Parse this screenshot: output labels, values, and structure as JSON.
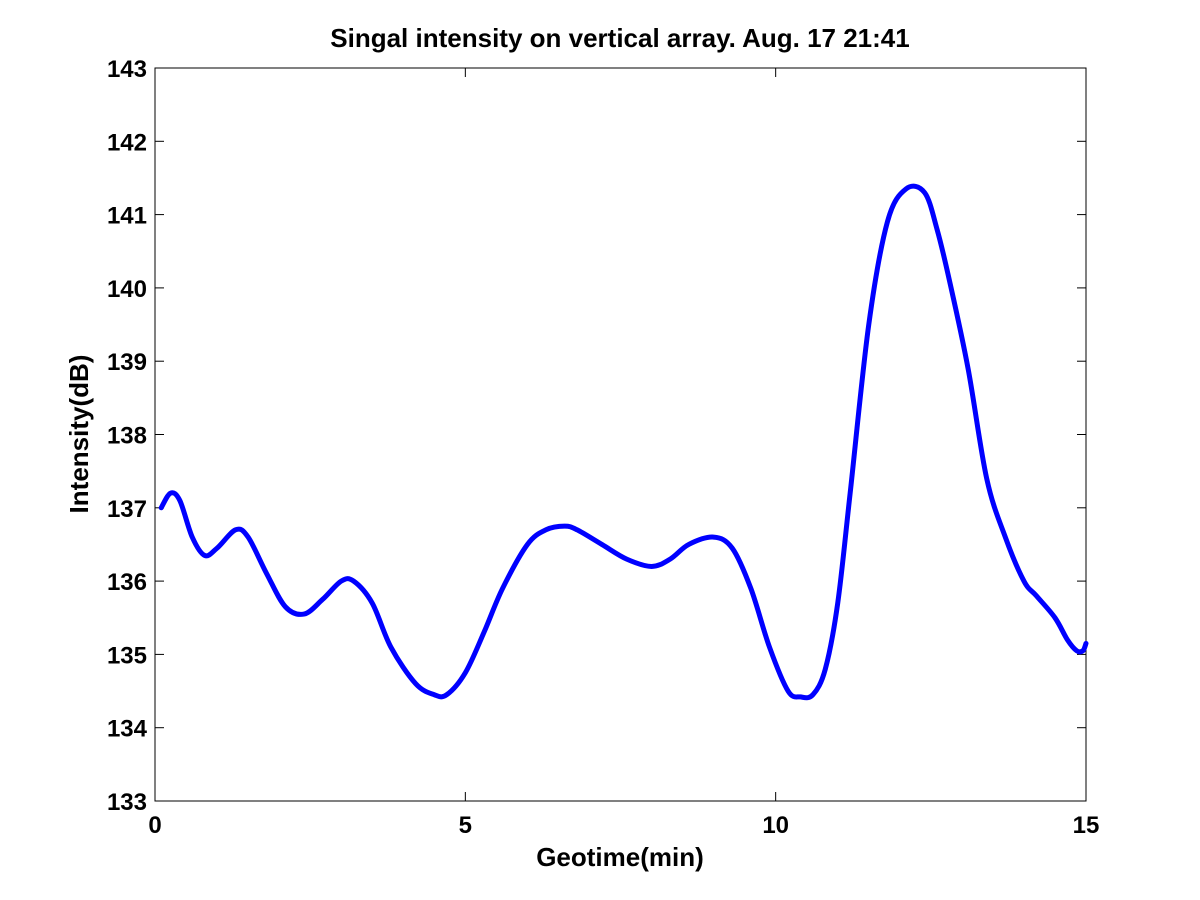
{
  "chart_data": {
    "type": "line",
    "title": "Singal intensity on vertical array. Aug. 17 21:41",
    "xlabel": "Geotime(min)",
    "ylabel": "Intensity(dB)",
    "xlim": [
      0,
      15
    ],
    "ylim": [
      133,
      143
    ],
    "xticks": [
      "0",
      "5",
      "10",
      "15"
    ],
    "yticks": [
      "133",
      "134",
      "135",
      "136",
      "137",
      "138",
      "139",
      "140",
      "141",
      "142",
      "143"
    ],
    "grid": false,
    "series": [
      {
        "color": "#0000ff",
        "x": [
          0.1,
          0.25,
          0.4,
          0.6,
          0.8,
          1.0,
          1.3,
          1.5,
          1.8,
          2.1,
          2.4,
          2.7,
          3.0,
          3.2,
          3.5,
          3.8,
          4.2,
          4.5,
          4.7,
          5.0,
          5.3,
          5.6,
          6.0,
          6.3,
          6.6,
          6.8,
          7.2,
          7.6,
          8.0,
          8.3,
          8.6,
          9.0,
          9.3,
          9.6,
          9.9,
          10.2,
          10.4,
          10.6,
          10.8,
          11.0,
          11.2,
          11.5,
          11.8,
          12.1,
          12.4,
          12.6,
          12.8,
          13.1,
          13.4,
          13.7,
          14.0,
          14.2,
          14.5,
          14.7,
          14.85,
          14.95,
          15.0
        ],
        "values": [
          137.0,
          137.2,
          137.1,
          136.6,
          136.35,
          136.45,
          136.7,
          136.6,
          136.1,
          135.65,
          135.55,
          135.75,
          136.0,
          136.0,
          135.7,
          135.1,
          134.6,
          134.45,
          134.45,
          134.75,
          135.3,
          135.9,
          136.5,
          136.7,
          136.75,
          136.7,
          136.5,
          136.3,
          136.2,
          136.3,
          136.5,
          136.6,
          136.45,
          135.9,
          135.1,
          134.5,
          134.42,
          134.45,
          134.8,
          135.7,
          137.2,
          139.5,
          140.9,
          141.35,
          141.3,
          140.8,
          140.1,
          138.9,
          137.4,
          136.6,
          136.0,
          135.8,
          135.5,
          135.2,
          135.05,
          135.05,
          135.15
        ]
      }
    ]
  }
}
